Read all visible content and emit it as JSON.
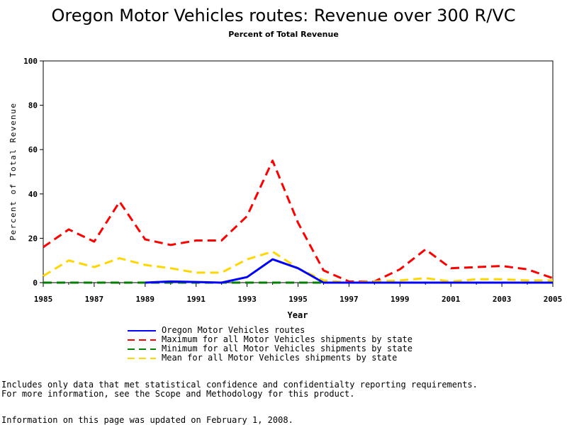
{
  "chart_data": {
    "type": "line",
    "title": "Oregon Motor Vehicles routes: Revenue over 300 R/VC",
    "subtitle": "Percent of Total Revenue",
    "xlabel": "Year",
    "ylabel": "Percent of Total Revenue",
    "xlim": [
      1985,
      2005
    ],
    "ylim": [
      0,
      100
    ],
    "x_ticks": [
      "1985",
      "1987",
      "1989",
      "1991",
      "1993",
      "1995",
      "1997",
      "1999",
      "2001",
      "2003",
      "2005"
    ],
    "y_ticks": [
      "0",
      "20",
      "40",
      "60",
      "80",
      "100"
    ],
    "grid": false,
    "legend_position": "bottom",
    "x": [
      1985,
      1986,
      1987,
      1988,
      1989,
      1990,
      1991,
      1992,
      1993,
      1994,
      1995,
      1996,
      1997,
      1998,
      1999,
      2000,
      2001,
      2002,
      2003,
      2004,
      2005
    ],
    "series": [
      {
        "name": "Oregon Motor Vehicles routes",
        "color": "#0000ff",
        "style": "solid",
        "values": [
          null,
          null,
          null,
          null,
          0,
          0.5,
          0.3,
          0,
          2.5,
          10.5,
          6.5,
          0,
          0,
          0,
          0,
          0,
          0,
          0,
          0,
          0,
          0
        ]
      },
      {
        "name": "Maximum for all Motor Vehicles shipments by state",
        "color": "#ff0000",
        "style": "dashed",
        "values": [
          16,
          24,
          18.5,
          36.5,
          19.5,
          17,
          19,
          19,
          30,
          55,
          27,
          5.5,
          0.5,
          0.5,
          6,
          15,
          6.5,
          7,
          7.5,
          6,
          2
        ]
      },
      {
        "name": "Minimum for all Motor Vehicles shipments by state",
        "color": "#008000",
        "style": "dashed",
        "values": [
          0,
          0,
          0,
          0,
          0,
          0,
          0,
          0,
          0,
          0,
          0,
          0,
          0,
          0,
          0,
          0,
          0,
          0,
          0,
          0,
          0
        ]
      },
      {
        "name": "Mean for all Motor Vehicles shipments by state",
        "color": "#ffd700",
        "style": "dashed",
        "values": [
          3,
          10,
          7,
          11,
          8,
          6.5,
          4.5,
          4.5,
          10.5,
          14,
          6.5,
          1,
          0,
          0.5,
          1,
          2,
          0.5,
          1.5,
          1.5,
          1,
          1
        ]
      }
    ]
  },
  "footnotes": [
    "Includes only data that met statistical confidence and confidentialty reporting requirements.",
    "For more information, see the Scope and Methodology for this product."
  ],
  "updated_note": "Information on this page was updated on February 1, 2008."
}
